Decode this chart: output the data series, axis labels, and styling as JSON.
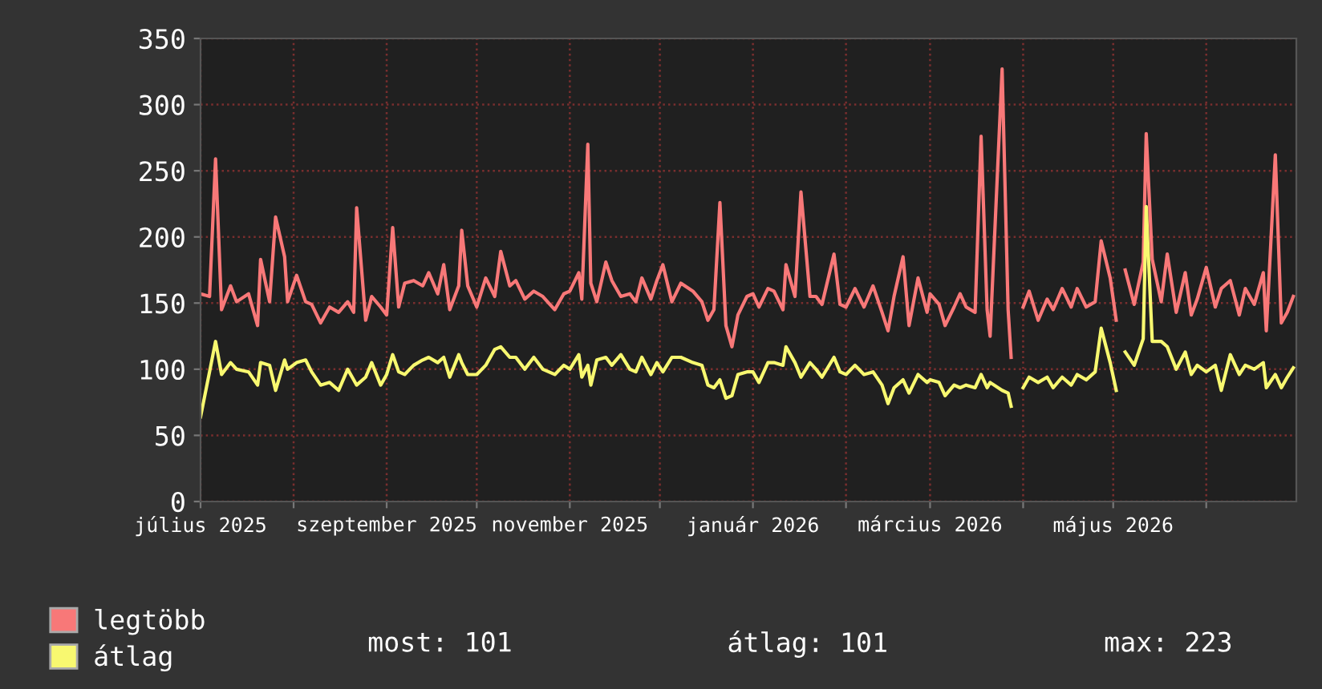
{
  "chart_data": {
    "type": "line",
    "x": [
      "2025-07-01",
      "2025-07-04",
      "2025-07-06",
      "2025-07-08",
      "2025-07-11",
      "2025-07-13",
      "2025-07-17",
      "2025-07-20",
      "2025-07-21",
      "2025-07-24",
      "2025-07-26",
      "2025-07-29",
      "2025-07-30",
      "2025-08-02",
      "2025-08-05",
      "2025-08-07",
      "2025-08-10",
      "2025-08-13",
      "2025-08-16",
      "2025-08-19",
      "2025-08-21",
      "2025-08-22",
      "2025-08-25",
      "2025-08-27",
      "2025-08-30",
      "2025-09-01",
      "2025-09-03",
      "2025-09-05",
      "2025-09-07",
      "2025-09-10",
      "2025-09-13",
      "2025-09-15",
      "2025-09-18",
      "2025-09-20",
      "2025-09-22",
      "2025-09-25",
      "2025-09-26",
      "2025-09-28",
      "2025-10-01",
      "2025-10-04",
      "2025-10-07",
      "2025-10-09",
      "2025-10-12",
      "2025-10-14",
      "2025-10-17",
      "2025-10-20",
      "2025-10-23",
      "2025-10-27",
      "2025-10-30",
      "2025-11-01",
      "2025-11-04",
      "2025-11-05",
      "2025-11-07",
      "2025-11-08",
      "2025-11-10",
      "2025-11-13",
      "2025-11-15",
      "2025-11-18",
      "2025-11-21",
      "2025-11-23",
      "2025-11-25",
      "2025-11-28",
      "2025-11-30",
      "2025-12-02",
      "2025-12-05",
      "2025-12-08",
      "2025-12-12",
      "2025-12-15",
      "2025-12-17",
      "2025-12-19",
      "2025-12-21",
      "2025-12-23",
      "2025-12-25",
      "2025-12-27",
      "2025-12-30",
      "2026-01-01",
      "2026-01-03",
      "2026-01-06",
      "2026-01-08",
      "2026-01-11",
      "2026-01-12",
      "2026-01-15",
      "2026-01-17",
      "2026-01-20",
      "2026-01-22",
      "2026-01-24",
      "2026-01-28",
      "2026-01-30",
      "2026-02-01",
      "2026-02-04",
      "2026-02-07",
      "2026-02-10",
      "2026-02-13",
      "2026-02-15",
      "2026-02-17",
      "2026-02-20",
      "2026-02-22",
      "2026-02-25",
      "2026-02-28",
      "2026-03-01",
      "2026-03-04",
      "2026-03-06",
      "2026-03-09",
      "2026-03-11",
      "2026-03-13",
      "2026-03-16",
      "2026-03-18",
      "2026-03-20",
      "2026-03-21",
      "2026-03-25",
      "2026-03-27",
      "2026-03-28",
      "2026-03-30",
      "2026-04-01",
      "2026-04-03",
      "2026-04-06",
      "2026-04-09",
      "2026-04-11",
      "2026-04-14",
      "2026-04-17",
      "2026-04-19",
      "2026-04-22",
      "2026-04-25",
      "2026-04-27",
      "2026-04-30",
      "2026-05-02",
      "2026-05-03",
      "2026-05-05",
      "2026-05-08",
      "2026-05-11",
      "2026-05-12",
      "2026-05-14",
      "2026-05-17",
      "2026-05-19",
      "2026-05-22",
      "2026-05-25",
      "2026-05-27",
      "2026-05-29",
      "2026-06-01",
      "2026-06-04",
      "2026-06-06",
      "2026-06-09",
      "2026-06-12",
      "2026-06-14",
      "2026-06-17",
      "2026-06-20",
      "2026-06-21",
      "2026-06-24",
      "2026-06-26",
      "2026-06-28",
      "2026-06-30"
    ],
    "series": [
      {
        "name": "legtöbb",
        "color": "#f87878",
        "values": [
          157,
          155,
          259,
          145,
          163,
          151,
          157,
          133,
          183,
          151,
          215,
          185,
          151,
          171,
          151,
          149,
          135,
          147,
          143,
          151,
          143,
          222,
          137,
          155,
          147,
          141,
          207,
          147,
          165,
          167,
          163,
          173,
          157,
          179,
          145,
          163,
          205,
          163,
          147,
          169,
          155,
          189,
          163,
          167,
          153,
          159,
          155,
          145,
          157,
          159,
          173,
          153,
          270,
          165,
          151,
          181,
          167,
          155,
          157,
          151,
          169,
          153,
          167,
          179,
          151,
          165,
          159,
          151,
          137,
          145,
          226,
          133,
          117,
          141,
          155,
          157,
          147,
          161,
          159,
          145,
          179,
          155,
          234,
          155,
          155,
          149,
          187,
          149,
          147,
          161,
          147,
          163,
          143,
          129,
          155,
          185,
          133,
          169,
          143,
          157,
          149,
          133,
          147,
          157,
          147,
          143,
          276,
          145,
          125,
          327,
          145,
          109,
          null,
          147,
          159,
          137,
          153,
          145,
          161,
          147,
          161,
          147,
          151,
          197,
          169,
          137,
          null,
          175,
          149,
          181,
          278,
          183,
          151,
          187,
          143,
          173,
          141,
          153,
          177,
          147,
          161,
          167,
          141,
          161,
          149,
          173,
          129,
          262,
          135,
          143,
          155
        ]
      },
      {
        "name": "átlag",
        "color": "#f8f870",
        "values": [
          64,
          98,
          121,
          96,
          105,
          100,
          98,
          88,
          105,
          103,
          84,
          107,
          100,
          105,
          107,
          98,
          88,
          90,
          84,
          100,
          92,
          88,
          94,
          105,
          88,
          96,
          111,
          98,
          96,
          103,
          107,
          109,
          105,
          109,
          94,
          111,
          105,
          96,
          96,
          103,
          115,
          117,
          109,
          109,
          100,
          109,
          100,
          96,
          103,
          100,
          111,
          94,
          103,
          88,
          107,
          109,
          103,
          111,
          100,
          98,
          109,
          96,
          105,
          98,
          109,
          109,
          105,
          103,
          88,
          86,
          92,
          78,
          80,
          96,
          98,
          98,
          90,
          105,
          105,
          103,
          117,
          105,
          94,
          105,
          100,
          94,
          109,
          98,
          96,
          103,
          96,
          98,
          88,
          74,
          86,
          92,
          82,
          96,
          90,
          92,
          90,
          80,
          88,
          86,
          88,
          86,
          96,
          86,
          90,
          84,
          82,
          72,
          null,
          86,
          94,
          90,
          94,
          86,
          94,
          88,
          96,
          92,
          98,
          131,
          105,
          84,
          null,
          113,
          103,
          123,
          223,
          121,
          121,
          117,
          100,
          113,
          96,
          103,
          98,
          103,
          84,
          111,
          96,
          103,
          100,
          105,
          86,
          96,
          86,
          94,
          101
        ]
      }
    ],
    "xlim": [
      "2025-07-01",
      "2026-07-01"
    ],
    "xticks": [
      {
        "value": "2025-07-01",
        "label": "július 2025"
      },
      {
        "value": "2025-08-01",
        "label": null
      },
      {
        "value": "2025-09-01",
        "label": "szeptember 2025"
      },
      {
        "value": "2025-10-01",
        "label": null
      },
      {
        "value": "2025-11-01",
        "label": "november 2025"
      },
      {
        "value": "2025-12-01",
        "label": null
      },
      {
        "value": "2026-01-01",
        "label": "január 2026"
      },
      {
        "value": "2026-02-01",
        "label": null
      },
      {
        "value": "2026-03-01",
        "label": "március 2026"
      },
      {
        "value": "2026-04-01",
        "label": null
      },
      {
        "value": "2026-05-01",
        "label": "május 2026"
      },
      {
        "value": "2026-06-01",
        "label": null
      }
    ],
    "ylim": [
      0,
      350
    ],
    "yticks": [
      0,
      50,
      100,
      150,
      200,
      250,
      300,
      350
    ],
    "grid": true,
    "legend": "bottom left",
    "annotations": [
      "most: 101",
      "átlag: 101",
      "max: 223"
    ]
  }
}
